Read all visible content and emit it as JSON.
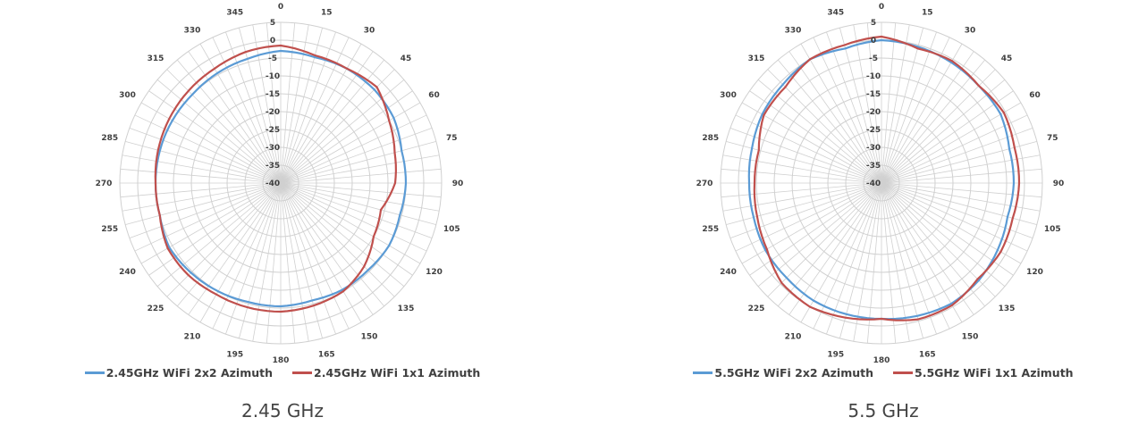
{
  "chart_data": [
    {
      "type": "radar",
      "caption": "2.45 GHz",
      "angles": [
        0,
        15,
        30,
        45,
        60,
        75,
        90,
        105,
        120,
        135,
        150,
        165,
        180,
        195,
        210,
        225,
        240,
        255,
        270,
        285,
        300,
        315,
        330,
        345
      ],
      "radial_range": [
        -40,
        5
      ],
      "radial_ticks": [
        "5",
        "0",
        "-5",
        "-10",
        "-15",
        "-20",
        "-25",
        "-30",
        "-35",
        "-40"
      ],
      "grid": true,
      "legend_position": "bottom",
      "series": [
        {
          "name": "2.45GHz WiFi 2x2 Azimuth",
          "color": "#5b9bd5",
          "values": [
            -3,
            -3.5,
            -3,
            -3,
            -3.5,
            -5,
            -5,
            -5.5,
            -5,
            -5.5,
            -5.5,
            -6,
            -5.5,
            -5.5,
            -5,
            -4.5,
            -4,
            -5,
            -5,
            -5,
            -5,
            -5,
            -4.5,
            -4
          ]
        },
        {
          "name": "2.45GHz WiFi 1x1 Azimuth",
          "color": "#c0504d",
          "values": [
            -1.5,
            -3,
            -3,
            -2,
            -5,
            -7,
            -8,
            -11,
            -10,
            -7,
            -5,
            -4.5,
            -4,
            -4,
            -4,
            -3.5,
            -3.5,
            -5,
            -5,
            -4.5,
            -4,
            -3.5,
            -3,
            -2
          ]
        }
      ]
    },
    {
      "type": "radar",
      "caption": "5.5 GHz",
      "angles": [
        0,
        15,
        30,
        45,
        60,
        75,
        90,
        105,
        120,
        135,
        150,
        165,
        180,
        195,
        210,
        225,
        240,
        255,
        270,
        285,
        300,
        315,
        330,
        345
      ],
      "radial_range": [
        -40,
        5
      ],
      "radial_ticks": [
        "5",
        "0",
        "-5",
        "-10",
        "-15",
        "-20",
        "-25",
        "-30",
        "-35",
        "-40"
      ],
      "grid": true,
      "legend_position": "bottom",
      "series": [
        {
          "name": "5.5GHz WiFi 2x2 Azimuth",
          "color": "#5b9bd5",
          "values": [
            0,
            -0.5,
            -1,
            -1.5,
            -1.5,
            -3,
            -3,
            -3.5,
            -2.5,
            -1.5,
            -1,
            -1.5,
            -2,
            -2,
            -2,
            -2.5,
            -2.5,
            -3,
            -3,
            -2.5,
            -1.5,
            -1,
            0,
            -1
          ]
        },
        {
          "name": "5.5GHz WiFi 1x1 Azimuth",
          "color": "#c0504d",
          "values": [
            1,
            -1,
            -0.5,
            -1.5,
            -0.5,
            -1.5,
            -1.5,
            -2,
            -1.5,
            -2,
            -0.5,
            -0.5,
            -2,
            -1,
            0,
            -0.5,
            -3,
            -4,
            -4.5,
            -4.5,
            -2,
            -2,
            0,
            0
          ]
        }
      ]
    }
  ]
}
